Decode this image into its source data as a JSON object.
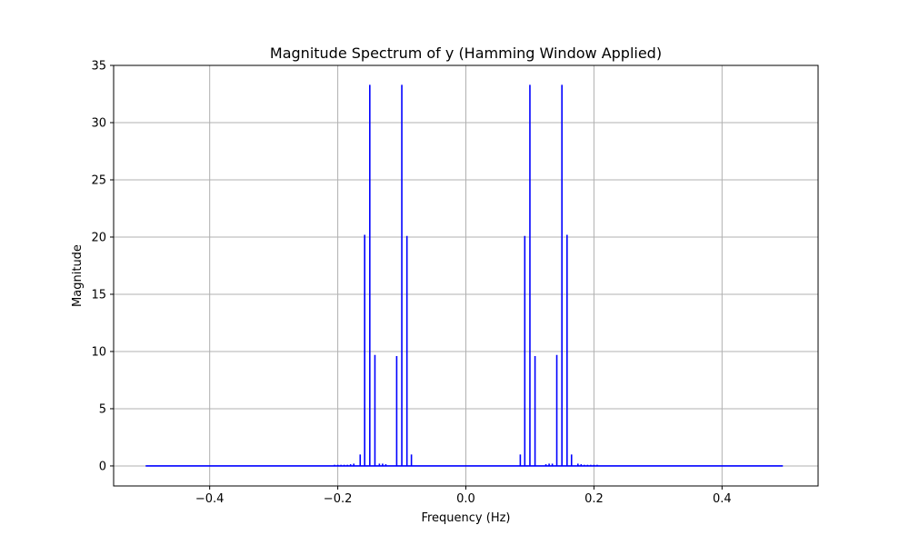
{
  "chart_data": {
    "type": "stem",
    "title": "Magnitude Spectrum of y (Hamming Window Applied)",
    "xlabel": "Frequency (Hz)",
    "ylabel": "Magnitude",
    "xlim": [
      -0.55,
      0.55
    ],
    "ylim": [
      -1.75,
      35
    ],
    "xticks": [
      -0.4,
      -0.2,
      0.0,
      0.2,
      0.4
    ],
    "xtick_labels": [
      "−0.4",
      "−0.2",
      "0.0",
      "0.2",
      "0.4"
    ],
    "yticks": [
      0,
      5,
      10,
      15,
      20,
      25,
      30,
      35
    ],
    "ytick_labels": [
      "0",
      "5",
      "10",
      "15",
      "20",
      "25",
      "30",
      "35"
    ],
    "grid": true,
    "line_color": "#0000ff",
    "baseline_range": [
      -0.5,
      0.495
    ],
    "stems": {
      "x": [
        -0.205,
        -0.2,
        -0.195,
        -0.19,
        -0.185,
        -0.18,
        -0.175,
        -0.165,
        -0.158,
        -0.15,
        -0.142,
        -0.135,
        -0.13,
        -0.125,
        -0.108,
        -0.1,
        -0.092,
        -0.085,
        0.085,
        0.092,
        0.1,
        0.108,
        0.125,
        0.13,
        0.135,
        0.142,
        0.15,
        0.158,
        0.165,
        0.175,
        0.18,
        0.185,
        0.19,
        0.195,
        0.2,
        0.205
      ],
      "y": [
        0.1,
        0.1,
        0.1,
        0.1,
        0.1,
        0.15,
        0.2,
        1.0,
        20.2,
        33.3,
        9.7,
        0.2,
        0.2,
        0.15,
        9.6,
        33.3,
        20.1,
        1.0,
        1.0,
        20.1,
        33.3,
        9.6,
        0.15,
        0.2,
        0.2,
        9.7,
        33.3,
        20.2,
        1.0,
        0.2,
        0.15,
        0.1,
        0.1,
        0.1,
        0.1,
        0.1
      ]
    }
  }
}
